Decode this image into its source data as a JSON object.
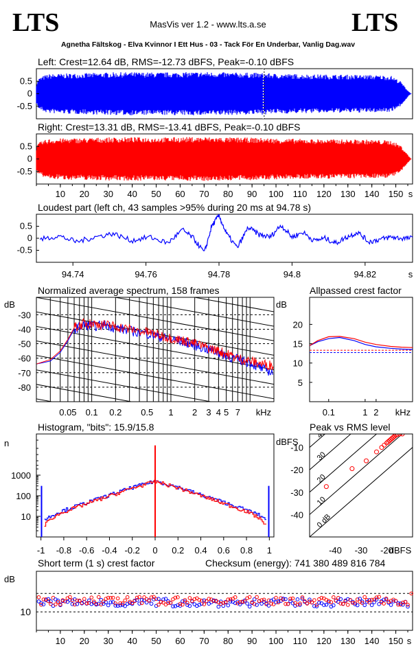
{
  "header": {
    "logo_left": "LTS",
    "logo_right": "LTS",
    "app_title": "MasVis ver 1.2 - www.lts.a.se",
    "file_name": "Agnetha Fältskog - Elva Kvinnor I Ett Hus - 03 - Tack För En Underbar, Vanlig Dag.wav"
  },
  "colors": {
    "left": "#0000ff",
    "right": "#ff0000",
    "axis": "#000000"
  },
  "chart_data": [
    {
      "id": "left-waveform",
      "type": "area",
      "title": "Left: Crest=12.64 dB, RMS=-12.73 dBFS, Peak=-0.10 dBFS",
      "yticks": [
        "0.5",
        "0",
        "-0.5"
      ],
      "ytick_values": [
        0.5,
        0,
        -0.5
      ],
      "ylim": [
        -1,
        1
      ],
      "xlim": [
        0,
        157
      ],
      "marker_x": 94.78,
      "envelope_t": [
        0,
        1,
        3,
        5,
        10,
        20,
        30,
        40,
        50,
        60,
        70,
        80,
        90,
        95,
        100,
        110,
        120,
        130,
        140,
        148,
        152,
        154,
        155.5,
        156.5
      ],
      "envelope_a": [
        0.4,
        0.62,
        0.72,
        0.78,
        0.8,
        0.82,
        0.85,
        0.86,
        0.85,
        0.86,
        0.87,
        0.85,
        0.84,
        0.83,
        0.8,
        0.78,
        0.77,
        0.76,
        0.75,
        0.72,
        0.5,
        0.25,
        0.08,
        0.0
      ]
    },
    {
      "id": "right-waveform",
      "type": "area",
      "title": "Right: Crest=13.31 dB, RMS=-13.41 dBFS, Peak=-0.10 dBFS",
      "yticks": [
        "0.5",
        "0",
        "-0.5"
      ],
      "ytick_values": [
        0.5,
        0,
        -0.5
      ],
      "ylim": [
        -1,
        1
      ],
      "xlim": [
        0,
        157
      ],
      "xticks": [
        "10",
        "20",
        "30",
        "40",
        "50",
        "60",
        "70",
        "80",
        "90",
        "100",
        "110",
        "120",
        "130",
        "140",
        "150",
        "s"
      ],
      "xtick_values": [
        10,
        20,
        30,
        40,
        50,
        60,
        70,
        80,
        90,
        100,
        110,
        120,
        130,
        140,
        150
      ],
      "envelope_t": [
        0,
        1,
        3,
        5,
        10,
        20,
        30,
        40,
        50,
        60,
        70,
        80,
        90,
        95,
        100,
        110,
        120,
        130,
        140,
        148,
        152,
        154,
        155.5,
        156.5
      ],
      "envelope_a": [
        0.45,
        0.65,
        0.74,
        0.8,
        0.82,
        0.84,
        0.86,
        0.87,
        0.86,
        0.87,
        0.88,
        0.86,
        0.85,
        0.84,
        0.82,
        0.8,
        0.79,
        0.78,
        0.77,
        0.74,
        0.55,
        0.3,
        0.1,
        0.0
      ]
    },
    {
      "id": "loudest-part",
      "type": "line",
      "title": "Loudest part (left  ch, 43 samples >95% during 20 ms at 94.78 s)",
      "yticks": [
        "0.5",
        "0",
        "-0.5"
      ],
      "ytick_values": [
        0.5,
        0,
        -0.5
      ],
      "ylim": [
        -1,
        1
      ],
      "xlim": [
        94.73,
        94.833
      ],
      "xticks": [
        "94.74",
        "94.76",
        "94.78",
        "94.8",
        "94.82",
        "s"
      ],
      "xtick_values": [
        94.74,
        94.76,
        94.78,
        94.8,
        94.82
      ],
      "x": [
        94.731,
        94.736,
        94.741,
        94.746,
        94.751,
        94.756,
        94.761,
        94.766,
        94.77,
        94.773,
        94.776,
        94.778,
        94.78,
        94.782,
        94.785,
        94.788,
        94.791,
        94.794,
        94.797,
        94.8,
        94.803,
        94.806,
        94.809,
        94.812,
        94.815,
        94.818,
        94.821,
        94.824,
        94.827,
        94.83,
        94.833
      ],
      "y": [
        -0.05,
        0.1,
        -0.15,
        0.05,
        0.2,
        -0.1,
        0.05,
        -0.2,
        0.35,
        0.0,
        -0.6,
        0.5,
        0.95,
        0.2,
        -0.4,
        0.45,
        0.15,
        0.05,
        0.55,
        0.05,
        0.25,
        -0.1,
        0.0,
        -0.2,
        0.05,
        0.25,
        -0.15,
        -0.05,
        0.05,
        0.0,
        0.0
      ]
    },
    {
      "id": "spectrum",
      "type": "line",
      "title": "Normalized average spectrum, 158 frames",
      "ylabel": "dB",
      "yticks": [
        "-30",
        "-40",
        "-50",
        "-60",
        "-70",
        "-80"
      ],
      "ytick_values": [
        -30,
        -40,
        -50,
        -60,
        -70,
        -80
      ],
      "ylim": [
        -90,
        -18
      ],
      "xscale": "log",
      "xlim": [
        0.02,
        20
      ],
      "xticks": [
        "0.05",
        "0.1",
        "0.2",
        "0.5",
        "1",
        "2",
        "3",
        "4",
        "5",
        "7",
        "kHz"
      ],
      "xtick_values": [
        0.05,
        0.1,
        0.2,
        0.5,
        1,
        2,
        3,
        4,
        5,
        7
      ],
      "series": [
        {
          "color": "blue",
          "x": [
            0.02,
            0.03,
            0.04,
            0.05,
            0.06,
            0.08,
            0.1,
            0.15,
            0.2,
            0.3,
            0.5,
            0.7,
            1,
            1.5,
            2,
            3,
            4,
            5,
            7,
            10,
            14,
            20
          ],
          "y": [
            -64,
            -62,
            -56,
            -48,
            -40,
            -37,
            -38,
            -37,
            -39,
            -41,
            -43,
            -45,
            -47,
            -49,
            -51,
            -54,
            -56,
            -58,
            -61,
            -63,
            -67,
            -70
          ]
        },
        {
          "color": "red",
          "x": [
            0.02,
            0.03,
            0.04,
            0.05,
            0.06,
            0.08,
            0.1,
            0.15,
            0.2,
            0.3,
            0.5,
            0.7,
            1,
            1.5,
            2,
            3,
            4,
            5,
            7,
            10,
            14,
            20
          ],
          "y": [
            -64,
            -61,
            -55,
            -47,
            -39,
            -36,
            -36,
            -37,
            -38,
            -40,
            -42,
            -44,
            -46,
            -48,
            -50,
            -53,
            -55,
            -57,
            -60,
            -62,
            -64,
            -65
          ]
        }
      ]
    },
    {
      "id": "allpassed-crest",
      "type": "line",
      "title": "Allpassed crest factor",
      "ylabel": "dB",
      "yticks": [
        "20",
        "15",
        "10",
        "5"
      ],
      "ytick_values": [
        20,
        15,
        10,
        5
      ],
      "ylim": [
        0,
        27
      ],
      "xscale": "log",
      "xlim": [
        0.03,
        20
      ],
      "xticks": [
        "0.1",
        "1",
        "2",
        "kHz"
      ],
      "xtick_values": [
        0.1,
        1,
        2
      ],
      "series": [
        {
          "color": "blue",
          "x": [
            0.03,
            0.05,
            0.1,
            0.2,
            0.5,
            1,
            2,
            5,
            10,
            20
          ],
          "y": [
            14.5,
            15.5,
            16.3,
            16.6,
            15.8,
            14.8,
            14.2,
            13.8,
            13.6,
            13.5
          ]
        },
        {
          "color": "red",
          "x": [
            0.03,
            0.05,
            0.1,
            0.2,
            0.5,
            1,
            2,
            5,
            10,
            20
          ],
          "y": [
            14.5,
            15.8,
            16.8,
            16.9,
            16.3,
            15.4,
            14.8,
            14.3,
            14.1,
            14.0
          ]
        }
      ],
      "ref_lines": [
        {
          "color": "blue",
          "y": 12.7
        },
        {
          "color": "red",
          "y": 13.3
        }
      ]
    },
    {
      "id": "histogram",
      "type": "line",
      "title": "Histogram, \"bits\": 15.9/15.8",
      "ylabel": "n",
      "yticks": [
        "1000",
        "100",
        "10"
      ],
      "ytick_values": [
        1000,
        100,
        10
      ],
      "yscale": "log",
      "ylim": [
        1,
        100000
      ],
      "xlim": [
        -1.04,
        1.04
      ],
      "xticks": [
        "-1",
        "-0.8",
        "-0.6",
        "-0.4",
        "-0.2",
        "0",
        "0.2",
        "0.4",
        "0.6",
        "0.8",
        "1"
      ],
      "xtick_values": [
        -1,
        -0.8,
        -0.6,
        -0.4,
        -0.2,
        0,
        0.2,
        0.4,
        0.6,
        0.8,
        1
      ],
      "series": [
        {
          "color": "blue",
          "x": [
            -0.97,
            -0.9,
            -0.8,
            -0.6,
            -0.4,
            -0.2,
            -0.01,
            0.01,
            0.2,
            0.4,
            0.6,
            0.8,
            0.9,
            0.97
          ],
          "y": [
            7,
            12,
            20,
            48,
            110,
            260,
            500,
            500,
            260,
            110,
            48,
            20,
            12,
            7
          ]
        },
        {
          "color": "red",
          "x": [
            -0.97,
            -0.9,
            -0.8,
            -0.6,
            -0.4,
            -0.2,
            -0.01,
            0.01,
            0.2,
            0.4,
            0.6,
            0.8,
            0.9,
            0.97
          ],
          "y": [
            4,
            9,
            17,
            42,
            100,
            240,
            480,
            480,
            240,
            100,
            42,
            17,
            9,
            4
          ]
        }
      ],
      "spikes": [
        {
          "color": "red",
          "x": 0,
          "y": 28000
        },
        {
          "color": "blue",
          "x": -0.995,
          "y": 300
        },
        {
          "color": "blue",
          "x": 0.995,
          "y": 300
        }
      ]
    },
    {
      "id": "peak-vs-rms",
      "type": "scatter",
      "title": "Peak vs RMS level",
      "ylabel": "dBFS",
      "xlabel": "dBFS",
      "yticks": [
        "-10",
        "-20",
        "-30",
        "-40"
      ],
      "ytick_values": [
        -10,
        -20,
        -30,
        -40
      ],
      "xticks": [
        "-40",
        "-30",
        "-20"
      ],
      "xtick_values": [
        -40,
        -30,
        -20
      ],
      "diag_labels": [
        "40",
        "30",
        "20",
        "10",
        "0 dB"
      ],
      "xlim": [
        -50,
        -10
      ],
      "ylim": [
        -50,
        -4
      ],
      "points": [
        {
          "x": -43.5,
          "y": -27.5
        },
        {
          "x": -33.5,
          "y": -19.5
        },
        {
          "x": -28,
          "y": -16
        },
        {
          "x": -24,
          "y": -12
        },
        {
          "x": -22,
          "y": -10
        },
        {
          "x": -21,
          "y": -9
        },
        {
          "x": -20,
          "y": -8
        },
        {
          "x": -19.5,
          "y": -7.5
        },
        {
          "x": -19,
          "y": -7
        },
        {
          "x": -18.5,
          "y": -6.5
        },
        {
          "x": -18,
          "y": -6
        },
        {
          "x": -17.5,
          "y": -5.5
        },
        {
          "x": -17,
          "y": -5
        },
        {
          "x": -16.5,
          "y": -4.5
        },
        {
          "x": -16,
          "y": -4.2
        },
        {
          "x": -15,
          "y": -4
        },
        {
          "x": -14,
          "y": -4
        }
      ]
    },
    {
      "id": "short-term-crest",
      "type": "scatter",
      "title": "Short term (1 s) crest factor",
      "checksum": "Checksum (energy):   741 380 489 816 784",
      "ylabel": "dB",
      "yticks": [
        "10"
      ],
      "ytick_values": [
        10
      ],
      "xticks": [
        "10",
        "20",
        "30",
        "40",
        "50",
        "60",
        "70",
        "80",
        "90",
        "100",
        "110",
        "120",
        "130",
        "140",
        "150",
        "s"
      ],
      "xtick_values": [
        10,
        20,
        30,
        40,
        50,
        60,
        70,
        80,
        90,
        100,
        110,
        120,
        130,
        140,
        150
      ],
      "xlim": [
        0,
        157
      ],
      "ylim": [
        5,
        21
      ],
      "dashed_levels": [
        10,
        15
      ],
      "blue_base": 12.5,
      "red_base": 13.0,
      "end_point": {
        "x": 156.5,
        "y": 15
      }
    }
  ]
}
